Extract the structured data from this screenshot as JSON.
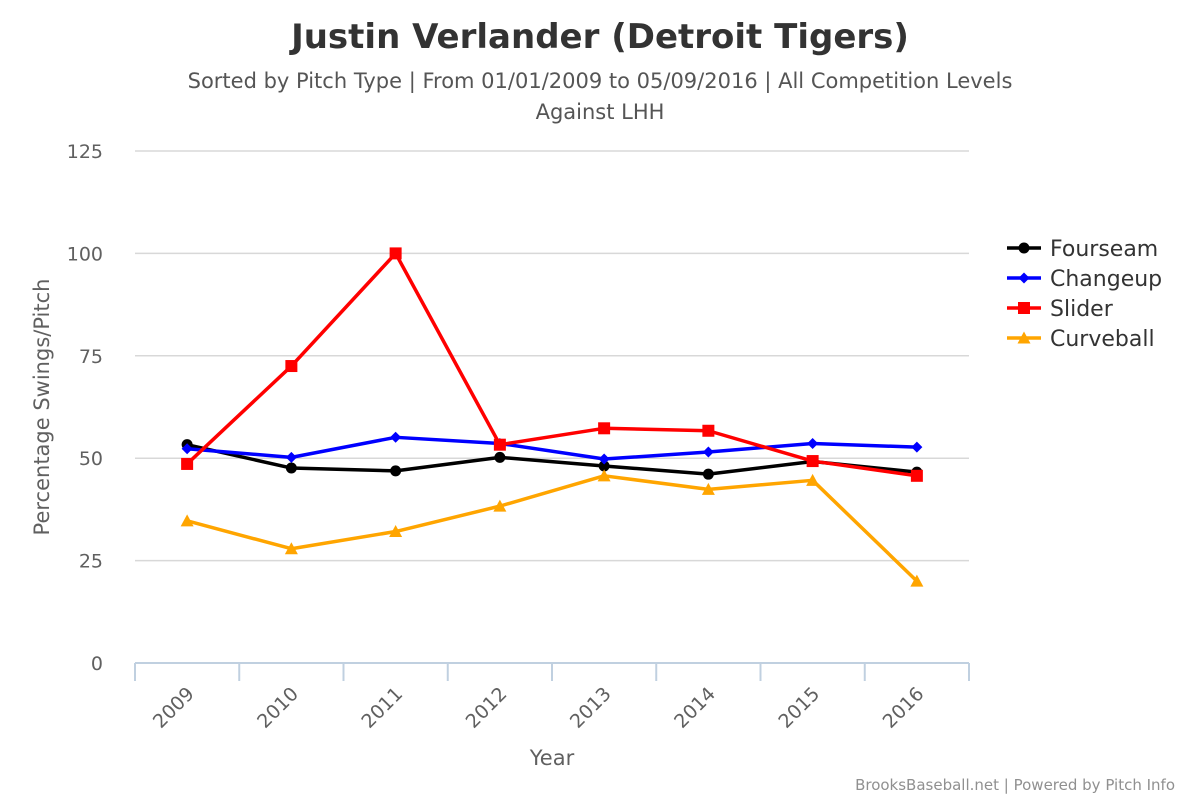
{
  "chart_data": {
    "type": "line",
    "title": "Justin Verlander (Detroit Tigers)",
    "subtitle_line1": "Sorted by Pitch Type | From 01/01/2009 to 05/09/2016 | All Competition Levels",
    "subtitle_line2": "Against LHH",
    "xlabel": "Year",
    "ylabel": "Percentage Swings/Pitch",
    "categories": [
      "2009",
      "2010",
      "2011",
      "2012",
      "2013",
      "2014",
      "2015",
      "2016"
    ],
    "ylim": [
      0,
      125
    ],
    "yticks": [
      0,
      25,
      50,
      75,
      100,
      125
    ],
    "grid": true,
    "legend_position": "right",
    "series": [
      {
        "name": "Fourseam",
        "color": "#000000",
        "marker": "circle",
        "values": [
          53.3,
          47.6,
          46.9,
          50.2,
          48.1,
          46.1,
          49.2,
          46.6
        ]
      },
      {
        "name": "Changeup",
        "color": "#0000ff",
        "marker": "diamond",
        "values": [
          52.3,
          50.2,
          55.1,
          53.6,
          49.8,
          51.5,
          53.6,
          52.7
        ]
      },
      {
        "name": "Slider",
        "color": "#ff0000",
        "marker": "square",
        "values": [
          48.6,
          72.5,
          100.0,
          53.3,
          57.3,
          56.7,
          49.3,
          45.7
        ]
      },
      {
        "name": "Curveball",
        "color": "#ffa500",
        "marker": "triangle",
        "values": [
          34.7,
          27.9,
          32.1,
          38.3,
          45.7,
          42.4,
          44.6,
          20.0
        ]
      }
    ],
    "credits": "BrooksBaseball.net | Powered by Pitch Info"
  }
}
